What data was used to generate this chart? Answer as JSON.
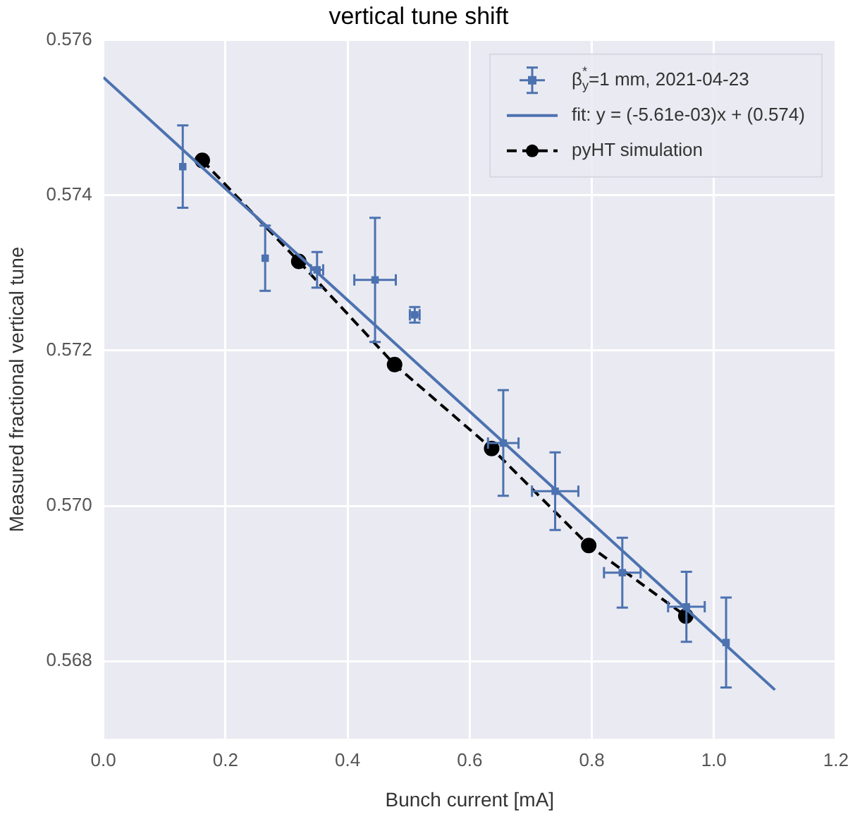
{
  "chart_data": {
    "type": "scatter",
    "title": "vertical tune shift",
    "xlabel": "Bunch current [mA]",
    "ylabel": "Measured fractional vertical tune",
    "xlim": [
      0,
      1.2
    ],
    "xticks": [
      {
        "value": 0,
        "label": "0.0"
      },
      {
        "value": 0.2,
        "label": "0.2"
      },
      {
        "value": 0.4,
        "label": "0.4"
      },
      {
        "value": 0.6,
        "label": "0.6"
      },
      {
        "value": 0.8,
        "label": "0.8"
      },
      {
        "value": 1,
        "label": "1.0"
      },
      {
        "value": 1.2,
        "label": "1.2"
      }
    ],
    "ylim": [
      0.567,
      0.576
    ],
    "yticks": [
      0.568,
      {
        "value": 0.57,
        "label": "0.570"
      },
      0.572,
      0.574,
      0.576
    ],
    "grid": true,
    "legend": "top right",
    "series": [
      {
        "name": "β$_{y}$$^{*}$=1 mm, 2021-04-23",
        "color": "#4c72b0",
        "marker": "square",
        "x": [
          0.13,
          0.265,
          0.35,
          0.445,
          0.51,
          0.655,
          0.74,
          0.85,
          0.955,
          1.02
        ],
        "values": [
          0.57437,
          0.57319,
          0.57304,
          0.57291,
          0.57246,
          0.57081,
          0.57019,
          0.56914,
          0.5687,
          0.56824
        ],
        "errors": [
          0.00053,
          0.00042,
          0.00023,
          0.0008,
          0.0001,
          0.00068,
          0.0005,
          0.00045,
          0.00045,
          0.00058
        ],
        "xerrors": [
          null,
          null,
          0.01,
          0.034,
          0.008,
          0.025,
          0.038,
          0.03,
          0.03,
          null
        ]
      },
      {
        "name": "fit: y = (-5.61e-03)x + (0.574)",
        "type": "line",
        "color": "#4c72b0",
        "marker": "none",
        "line_style": "solid",
        "x": [
          0,
          1.1
        ],
        "values": [
          0.57552,
          0.56763
        ]
      },
      {
        "name": "pyHT simulation",
        "type": "line",
        "color": "#000000",
        "marker": "circle",
        "line_style": "dashed",
        "x": [
          0.162,
          0.32,
          0.477,
          0.636,
          0.795,
          0.954
        ],
        "values": [
          0.57445,
          0.57315,
          0.57182,
          0.57074,
          0.56949,
          0.56858
        ]
      }
    ]
  }
}
